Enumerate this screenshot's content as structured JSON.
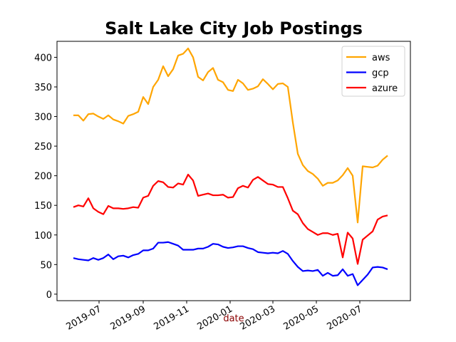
{
  "chart_data": {
    "type": "line",
    "title": "Salt Lake City Job Postings",
    "xlabel": "date",
    "x": [
      "2019-05-26",
      "2019-06-02",
      "2019-06-09",
      "2019-06-16",
      "2019-06-23",
      "2019-06-30",
      "2019-07-07",
      "2019-07-14",
      "2019-07-21",
      "2019-07-28",
      "2019-08-04",
      "2019-08-11",
      "2019-08-18",
      "2019-08-25",
      "2019-09-01",
      "2019-09-08",
      "2019-09-15",
      "2019-09-22",
      "2019-09-29",
      "2019-10-06",
      "2019-10-13",
      "2019-10-20",
      "2019-10-27",
      "2019-11-03",
      "2019-11-10",
      "2019-11-17",
      "2019-11-24",
      "2019-12-01",
      "2019-12-08",
      "2019-12-15",
      "2019-12-22",
      "2019-12-29",
      "2020-01-05",
      "2020-01-12",
      "2020-01-19",
      "2020-01-26",
      "2020-02-02",
      "2020-02-09",
      "2020-02-16",
      "2020-02-23",
      "2020-03-01",
      "2020-03-08",
      "2020-03-15",
      "2020-03-22",
      "2020-03-29",
      "2020-04-05",
      "2020-04-12",
      "2020-04-19",
      "2020-04-26",
      "2020-05-03",
      "2020-05-10",
      "2020-05-17",
      "2020-05-24",
      "2020-05-31",
      "2020-06-07",
      "2020-06-14",
      "2020-06-21",
      "2020-06-28",
      "2020-07-05",
      "2020-07-12",
      "2020-07-19",
      "2020-07-26",
      "2020-08-02",
      "2020-08-09"
    ],
    "series": [
      {
        "name": "aws",
        "color": "#ffa500",
        "values": [
          302,
          302,
          293,
          304,
          305,
          300,
          296,
          302,
          295,
          292,
          288,
          301,
          304,
          308,
          333,
          321,
          350,
          362,
          385,
          368,
          380,
          403,
          406,
          415,
          400,
          367,
          361,
          375,
          382,
          362,
          358,
          345,
          343,
          362,
          356,
          345,
          347,
          351,
          363,
          355,
          346,
          355,
          356,
          350,
          290,
          237,
          218,
          208,
          203,
          195,
          183,
          188,
          188,
          192,
          201,
          213,
          200,
          121,
          216,
          215,
          214,
          217,
          227,
          234
        ]
      },
      {
        "name": "gcp",
        "color": "#0000ff",
        "values": [
          61,
          59,
          58,
          57,
          61,
          58,
          61,
          67,
          59,
          64,
          65,
          62,
          66,
          68,
          74,
          74,
          77,
          87,
          87,
          88,
          85,
          82,
          75,
          75,
          75,
          77,
          77,
          80,
          85,
          84,
          80,
          78,
          79,
          81,
          81,
          78,
          76,
          71,
          70,
          69,
          70,
          69,
          73,
          68,
          56,
          46,
          39,
          40,
          39,
          41,
          31,
          36,
          31,
          32,
          42,
          31,
          34,
          15,
          24,
          33,
          45,
          46,
          45,
          42
        ]
      },
      {
        "name": "azure",
        "color": "#ff0000",
        "values": [
          147,
          150,
          148,
          162,
          145,
          139,
          135,
          149,
          145,
          145,
          144,
          145,
          147,
          146,
          163,
          166,
          183,
          191,
          189,
          181,
          180,
          187,
          185,
          202,
          192,
          166,
          168,
          170,
          167,
          167,
          168,
          163,
          164,
          179,
          183,
          180,
          193,
          198,
          192,
          186,
          185,
          181,
          181,
          162,
          141,
          135,
          120,
          110,
          105,
          100,
          103,
          103,
          100,
          102,
          62,
          104,
          94,
          51,
          92,
          99,
          106,
          126,
          131,
          133
        ]
      }
    ],
    "xlim": [
      "2019-05-03",
      "2020-09-10"
    ],
    "xticks": [
      {
        "value": "2019-07-01",
        "label": "2019-07"
      },
      {
        "value": "2019-09-01",
        "label": "2019-09"
      },
      {
        "value": "2019-11-01",
        "label": "2019-11"
      },
      {
        "value": "2020-01-01",
        "label": "2020-01"
      },
      {
        "value": "2020-03-01",
        "label": "2020-03"
      },
      {
        "value": "2020-05-01",
        "label": "2020-05"
      },
      {
        "value": "2020-07-01",
        "label": "2020-07"
      }
    ],
    "ylim": [
      -11,
      427
    ],
    "yticks": [
      0,
      50,
      100,
      150,
      200,
      250,
      300,
      350,
      400
    ],
    "legend": "upper right",
    "xlabel_color": "#8b0000"
  }
}
